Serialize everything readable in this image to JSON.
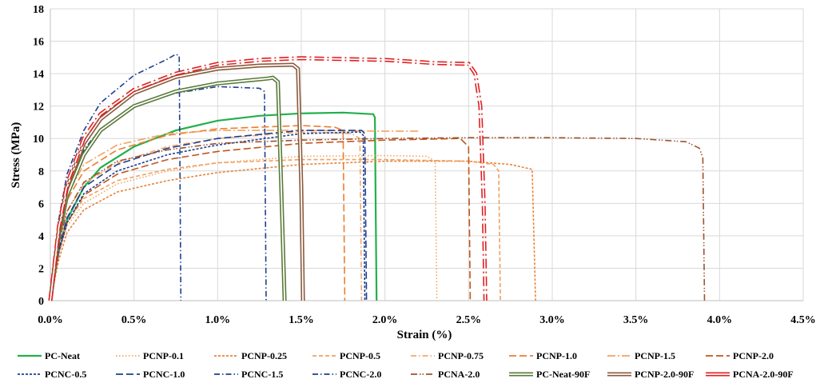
{
  "chart_data": {
    "type": "line",
    "title": "",
    "xlabel": "Strain (%)",
    "ylabel": "Stress (MPa)",
    "xlim": [
      0,
      4.5
    ],
    "ylim": [
      0,
      18
    ],
    "x_ticks": [
      "0.0%",
      "0.5%",
      "1.0%",
      "1.5%",
      "2.0%",
      "2.5%",
      "3.0%",
      "3.5%",
      "4.0%",
      "4.5%"
    ],
    "y_ticks": [
      "0",
      "2",
      "4",
      "6",
      "8",
      "10",
      "12",
      "14",
      "16",
      "18"
    ],
    "grid": true,
    "legend_position": "bottom",
    "series": [
      {
        "name": "PC-Neat",
        "color": "#22b04b",
        "style": "solid",
        "x": [
          0,
          0.05,
          0.1,
          0.2,
          0.3,
          0.5,
          0.75,
          1.0,
          1.25,
          1.5,
          1.75,
          1.93,
          1.94,
          1.945,
          1.95
        ],
        "y": [
          0,
          3.0,
          5.0,
          7.0,
          8.2,
          9.5,
          10.5,
          11.1,
          11.4,
          11.55,
          11.6,
          11.5,
          11.3,
          5,
          0
        ]
      },
      {
        "name": "PCNP-0.1",
        "color": "#f4a460",
        "style": "dotted",
        "x": [
          0,
          0.05,
          0.1,
          0.2,
          0.4,
          0.7,
          1.0,
          1.5,
          2.0,
          2.25,
          2.3,
          2.31
        ],
        "y": [
          0,
          2.8,
          4.6,
          6.0,
          7.2,
          8.0,
          8.5,
          8.9,
          8.95,
          8.9,
          8.6,
          0
        ]
      },
      {
        "name": "PCNP-0.25",
        "color": "#e8833a",
        "style": "short-dash",
        "x": [
          0,
          0.05,
          0.1,
          0.2,
          0.4,
          0.7,
          1.0,
          1.5,
          2.0,
          2.5,
          2.75,
          2.88,
          2.9
        ],
        "y": [
          0,
          2.5,
          4.2,
          5.6,
          6.7,
          7.4,
          7.9,
          8.4,
          8.6,
          8.6,
          8.4,
          8.1,
          0
        ]
      },
      {
        "name": "PCNP-0.5",
        "color": "#f0a060",
        "style": "dash",
        "x": [
          0,
          0.05,
          0.1,
          0.2,
          0.4,
          0.7,
          1.0,
          1.5,
          2.0,
          2.5,
          2.65,
          2.68,
          2.69
        ],
        "y": [
          0,
          3.0,
          4.8,
          6.3,
          7.4,
          8.1,
          8.5,
          8.7,
          8.7,
          8.6,
          8.4,
          8.0,
          0
        ]
      },
      {
        "name": "PCNP-0.75",
        "color": "#f2a96a",
        "style": "dash-dot",
        "x": [
          0,
          0.05,
          0.1,
          0.2,
          0.4,
          0.7,
          1.0,
          1.5,
          1.8,
          1.85,
          1.86
        ],
        "y": [
          0,
          3.5,
          5.5,
          7.2,
          8.5,
          9.5,
          10.0,
          10.4,
          10.3,
          10.0,
          0
        ]
      },
      {
        "name": "PCNP-1.0",
        "color": "#ed7d31",
        "style": "long-dash",
        "x": [
          0,
          0.05,
          0.1,
          0.2,
          0.4,
          0.7,
          1.0,
          1.5,
          1.7,
          1.75,
          1.76
        ],
        "y": [
          0,
          4.0,
          6.2,
          8.0,
          9.3,
          10.2,
          10.6,
          10.8,
          10.7,
          10.5,
          0
        ]
      },
      {
        "name": "PCNP-1.5",
        "color": "#f4a460",
        "style": "long-dash-dot",
        "x": [
          0,
          0.05,
          0.1,
          0.2,
          0.4,
          0.7,
          1.0,
          1.5,
          2.0,
          2.2
        ],
        "y": [
          0,
          4.2,
          6.5,
          8.4,
          9.6,
          10.3,
          10.5,
          10.5,
          10.45,
          10.45
        ]
      },
      {
        "name": "PCNP-2.0",
        "color": "#c0561e",
        "style": "long-dash",
        "x": [
          0,
          0.05,
          0.1,
          0.2,
          0.4,
          0.7,
          1.0,
          1.5,
          2.0,
          2.45,
          2.5,
          2.51
        ],
        "y": [
          0,
          3.0,
          4.8,
          6.5,
          7.8,
          8.7,
          9.2,
          9.7,
          9.9,
          10.0,
          9.5,
          0
        ]
      },
      {
        "name": "PCNC-0.5",
        "color": "#1f3f8f",
        "style": "short-dash",
        "x": [
          0,
          0.05,
          0.1,
          0.2,
          0.4,
          0.7,
          1.0,
          1.5,
          1.85,
          1.87,
          1.88
        ],
        "y": [
          0,
          3.0,
          4.8,
          6.6,
          8.0,
          9.0,
          9.6,
          10.3,
          10.4,
          10.2,
          0
        ]
      },
      {
        "name": "PCNC-1.0",
        "color": "#1f3f8f",
        "style": "long-dash",
        "x": [
          0,
          0.05,
          0.1,
          0.2,
          0.4,
          0.7,
          1.0,
          1.5,
          1.86,
          1.88,
          1.89
        ],
        "y": [
          0,
          3.2,
          5.1,
          7.0,
          8.4,
          9.4,
          10.0,
          10.5,
          10.5,
          10.3,
          0
        ]
      },
      {
        "name": "PCNC-1.5",
        "color": "#1f3f8f",
        "style": "dash-dot",
        "x": [
          0,
          0.05,
          0.1,
          0.2,
          0.3,
          0.5,
          0.75,
          1.0,
          1.25,
          1.28,
          1.29
        ],
        "y": [
          0,
          4.5,
          7.0,
          9.3,
          10.6,
          12.0,
          12.8,
          13.2,
          13.1,
          12.9,
          0
        ]
      },
      {
        "name": "PCNC-2.0",
        "color": "#1f3f8f",
        "style": "dash-dot",
        "x": [
          0,
          0.05,
          0.1,
          0.2,
          0.3,
          0.5,
          0.7,
          0.75,
          0.77,
          0.78
        ],
        "y": [
          0,
          5.0,
          7.8,
          10.5,
          12.2,
          13.9,
          14.9,
          15.2,
          15.1,
          0
        ]
      },
      {
        "name": "PCNA-2.0",
        "color": "#a0522d",
        "style": "dash-dot-dot",
        "x": [
          0,
          0.05,
          0.1,
          0.2,
          0.4,
          0.7,
          1.0,
          1.5,
          2.0,
          2.5,
          3.0,
          3.5,
          3.8,
          3.88,
          3.9,
          3.91
        ],
        "y": [
          0,
          3.5,
          5.5,
          7.3,
          8.6,
          9.3,
          9.7,
          9.9,
          10.0,
          10.05,
          10.05,
          10.0,
          9.8,
          9.4,
          8.8,
          0
        ]
      },
      {
        "name": "PC-Neat-90F",
        "color": "#5a7a3a",
        "style": "double",
        "x": [
          0,
          0.05,
          0.1,
          0.2,
          0.3,
          0.5,
          0.75,
          1.0,
          1.2,
          1.3,
          1.33,
          1.36,
          1.38,
          1.4
        ],
        "y": [
          0,
          4.0,
          6.5,
          9.0,
          10.5,
          12.0,
          12.9,
          13.4,
          13.6,
          13.7,
          13.75,
          13.5,
          7,
          0
        ]
      },
      {
        "name": "PCNP-2.0-90F",
        "color": "#8b5a3c",
        "style": "double",
        "x": [
          0,
          0.05,
          0.1,
          0.2,
          0.3,
          0.5,
          0.75,
          1.0,
          1.25,
          1.45,
          1.48,
          1.5,
          1.51
        ],
        "y": [
          0,
          4.3,
          7.0,
          9.7,
          11.2,
          12.8,
          13.8,
          14.3,
          14.5,
          14.55,
          14.3,
          7,
          0
        ]
      },
      {
        "name": "PCNA-2.0-90F",
        "color": "#e02020",
        "style": "double-dash-dot",
        "x": [
          0,
          0.05,
          0.1,
          0.2,
          0.3,
          0.5,
          0.75,
          1.0,
          1.25,
          1.5,
          2.0,
          2.3,
          2.5,
          2.54,
          2.57,
          2.59,
          2.6
        ],
        "y": [
          0,
          4.5,
          7.2,
          10.0,
          11.5,
          13.0,
          14.0,
          14.6,
          14.85,
          14.95,
          14.85,
          14.65,
          14.6,
          14.0,
          12.0,
          6,
          0
        ]
      }
    ]
  }
}
